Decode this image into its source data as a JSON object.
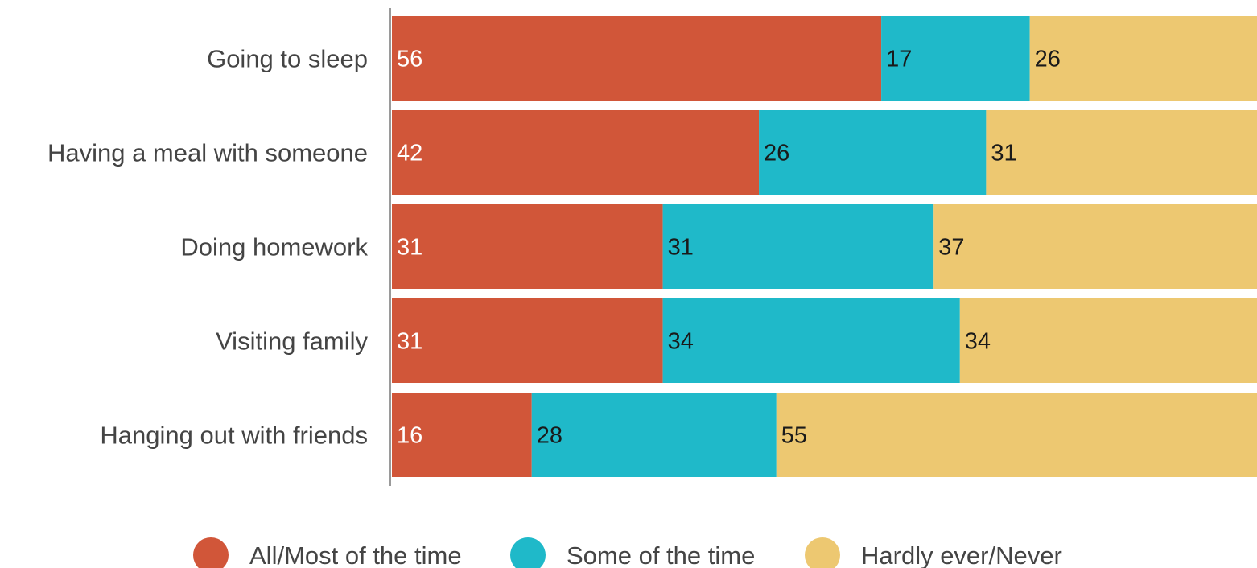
{
  "chart_data": {
    "type": "bar",
    "orientation": "horizontal",
    "stacked": true,
    "categories": [
      "Going to sleep",
      "Having a meal with someone",
      "Doing homework",
      "Visiting family",
      "Hanging out with friends"
    ],
    "series": [
      {
        "name": "All/Most of the time",
        "color": "#d15639",
        "label_color": "#ffffff",
        "values": [
          56,
          42,
          31,
          31,
          16
        ]
      },
      {
        "name": "Some of the time",
        "color": "#1fb9c9",
        "label_color": "#1a1a1a",
        "values": [
          17,
          26,
          31,
          34,
          28
        ]
      },
      {
        "name": "Hardly ever/Never",
        "color": "#edc871",
        "label_color": "#1a1a1a",
        "values": [
          26,
          31,
          37,
          34,
          55
        ]
      }
    ],
    "xlim": [
      0,
      99
    ],
    "grid": false,
    "legend_position": "bottom"
  }
}
